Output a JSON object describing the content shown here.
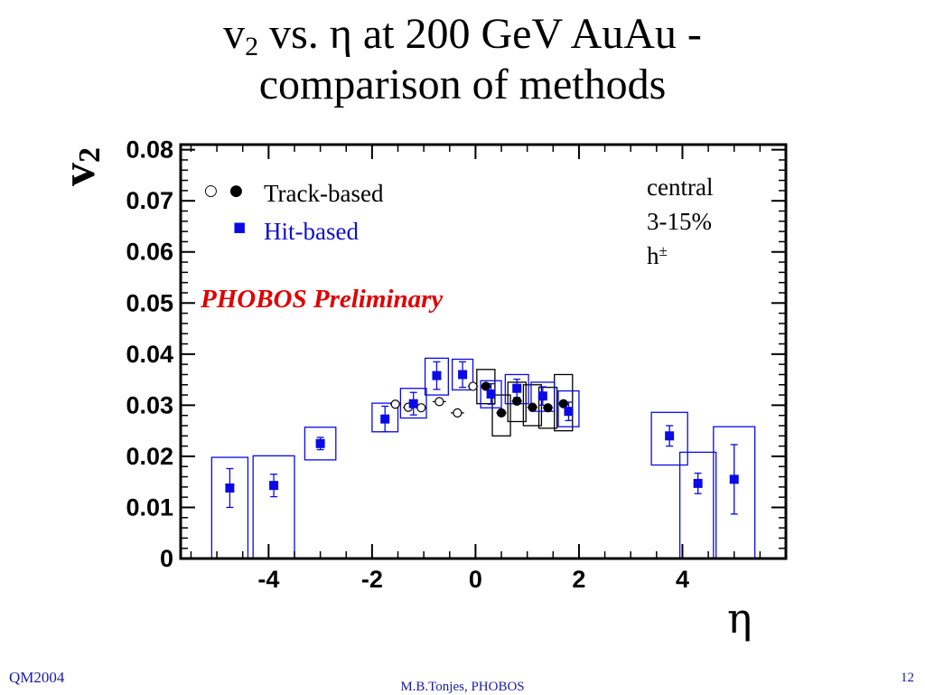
{
  "slide": {
    "title_line1_part1": "v",
    "title_line1_sub": "2",
    "title_line1_part2": " vs. η at 200 GeV AuAu -",
    "title_line2": "comparison of methods",
    "footer_left": "QM2004",
    "footer_center": "M.B.Tonjes, PHOBOS",
    "footer_right": "12"
  },
  "chart_data": {
    "type": "scatter",
    "xlabel": "η",
    "ylabel": "v",
    "ylabel_sub": "2",
    "xlim": [
      -5.7,
      6.0
    ],
    "ylim": [
      0,
      0.081
    ],
    "xticks": [
      -4,
      -2,
      0,
      2,
      4
    ],
    "xtick_labels": [
      "-4",
      "-2",
      "0",
      "2",
      "4"
    ],
    "yticks": [
      0,
      0.01,
      0.02,
      0.03,
      0.04,
      0.05,
      0.06,
      0.07,
      0.08
    ],
    "ytick_labels": [
      "0",
      "0.01",
      "0.02",
      "0.03",
      "0.04",
      "0.05",
      "0.06",
      "0.07",
      "0.08"
    ],
    "grid": false,
    "legend": {
      "placement": "top-left",
      "track_label": "Track-based",
      "hit_label": "Hit-based",
      "open_symbol": "○",
      "closed_symbol": "●",
      "square_symbol": "■"
    },
    "annotations": {
      "preliminary": "PHOBOS Preliminary",
      "centrality_line1": "central",
      "centrality_line2": "3-15%",
      "species_base": "h",
      "species_sup": "±"
    },
    "colors": {
      "hit": "#0a0ae6",
      "track": "#000000",
      "preliminary": "#e00000",
      "hit_label": "#1010d0"
    },
    "series": [
      {
        "name": "Hit-based",
        "marker": "filled-square",
        "color": "#0a0ae6",
        "points": [
          {
            "x": -4.75,
            "y": 0.0138,
            "err": 0.0038,
            "box_w": 0.7,
            "box_lo": 0.0,
            "box_hi": 0.0198
          },
          {
            "x": -3.9,
            "y": 0.0143,
            "err": 0.0022,
            "box_w": 0.8,
            "box_lo": 0.0,
            "box_hi": 0.0201
          },
          {
            "x": -3.0,
            "y": 0.0225,
            "err": 0.0012,
            "box_w": 0.6,
            "box_lo": 0.0193,
            "box_hi": 0.0257
          },
          {
            "x": -1.75,
            "y": 0.0273,
            "err": 0.0025,
            "box_w": 0.5,
            "box_lo": 0.0248,
            "box_hi": 0.0304
          },
          {
            "x": -1.2,
            "y": 0.0303,
            "err": 0.0022,
            "box_w": 0.5,
            "box_lo": 0.0275,
            "box_hi": 0.0333
          },
          {
            "x": -0.75,
            "y": 0.0358,
            "err": 0.0027,
            "box_w": 0.45,
            "box_lo": 0.032,
            "box_hi": 0.0392
          },
          {
            "x": -0.25,
            "y": 0.036,
            "err": 0.0025,
            "box_w": 0.4,
            "box_lo": 0.033,
            "box_hi": 0.039
          },
          {
            "x": 0.3,
            "y": 0.0322,
            "err": 0.002,
            "box_w": 0.4,
            "box_lo": 0.0295,
            "box_hi": 0.0348
          },
          {
            "x": 0.8,
            "y": 0.0333,
            "err": 0.0018,
            "box_w": 0.45,
            "box_lo": 0.0303,
            "box_hi": 0.036
          },
          {
            "x": 1.3,
            "y": 0.0318,
            "err": 0.0018,
            "box_w": 0.45,
            "box_lo": 0.0288,
            "box_hi": 0.0345
          },
          {
            "x": 1.8,
            "y": 0.0288,
            "err": 0.0018,
            "box_w": 0.4,
            "box_lo": 0.0258,
            "box_hi": 0.0328
          },
          {
            "x": 3.75,
            "y": 0.024,
            "err": 0.002,
            "box_w": 0.7,
            "box_lo": 0.0183,
            "box_hi": 0.0286
          },
          {
            "x": 4.3,
            "y": 0.0147,
            "err": 0.002,
            "box_w": 0.7,
            "box_lo": 0.0,
            "box_hi": 0.0208
          },
          {
            "x": 5.0,
            "y": 0.0155,
            "err": 0.0068,
            "box_w": 0.8,
            "box_lo": 0.0,
            "box_hi": 0.0258
          }
        ]
      },
      {
        "name": "Track-based",
        "marker": "circle",
        "color": "#000000",
        "points": [
          {
            "x": -1.55,
            "y": 0.0302,
            "xerr": 0.1,
            "filled": false
          },
          {
            "x": -1.3,
            "y": 0.0296,
            "xerr": 0.1,
            "filled": false
          },
          {
            "x": -1.05,
            "y": 0.0295,
            "xerr": 0.1,
            "filled": false
          },
          {
            "x": -0.7,
            "y": 0.0307,
            "xerr": 0.13,
            "filled": false
          },
          {
            "x": -0.35,
            "y": 0.0285,
            "xerr": 0.13,
            "filled": false
          },
          {
            "x": -0.05,
            "y": 0.0337,
            "xerr": 0.1,
            "filled": false
          },
          {
            "x": 0.2,
            "y": 0.0337,
            "xerr": 0.1,
            "filled": true,
            "box_w": 0.35,
            "box_lo": 0.0303,
            "box_hi": 0.037
          },
          {
            "x": 0.5,
            "y": 0.0285,
            "xerr": 0.1,
            "filled": true,
            "box_w": 0.35,
            "box_lo": 0.024,
            "box_hi": 0.032
          },
          {
            "x": 0.8,
            "y": 0.0308,
            "xerr": 0.1,
            "filled": true,
            "box_w": 0.35,
            "box_lo": 0.0268,
            "box_hi": 0.0345
          },
          {
            "x": 1.1,
            "y": 0.0296,
            "xerr": 0.1,
            "filled": true,
            "box_w": 0.35,
            "box_lo": 0.026,
            "box_hi": 0.034
          },
          {
            "x": 1.4,
            "y": 0.0295,
            "xerr": 0.1,
            "filled": true,
            "box_w": 0.35,
            "box_lo": 0.0255,
            "box_hi": 0.0335
          },
          {
            "x": 1.7,
            "y": 0.0303,
            "xerr": 0.1,
            "filled": true,
            "box_w": 0.35,
            "box_lo": 0.025,
            "box_hi": 0.036
          }
        ]
      }
    ]
  }
}
